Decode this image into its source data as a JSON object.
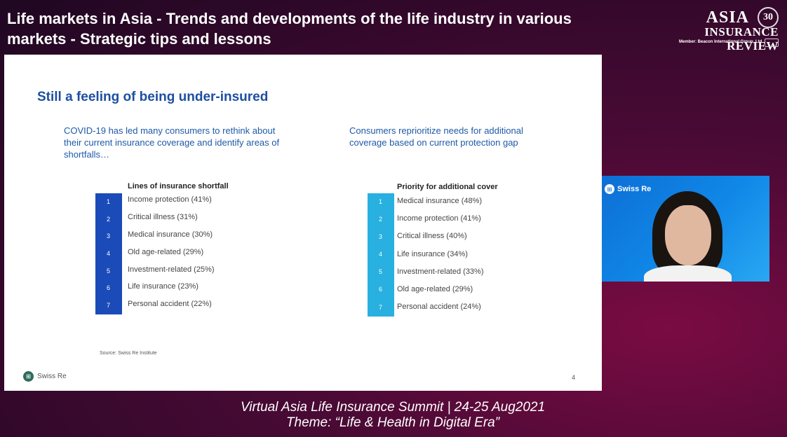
{
  "header": {
    "title": "Life markets in Asia - Trends and developments of the life industry in various markets - Strategic tips and lessons"
  },
  "logo": {
    "asia": "ASIA",
    "review": "INSURANCE REVIEW",
    "anniversary": "30",
    "member": "Member: Beacon International Group, Ltd."
  },
  "slide": {
    "title": "Still a feeling of being under-insured",
    "intro_left": "COVID-19 has led many consumers to rethink about their current insurance coverage and identify areas of shortfalls…",
    "intro_right": "Consumers reprioritize needs for additional coverage based on current protection gap",
    "left_list": {
      "heading": "Lines of insurance shortfall",
      "numbers": [
        "1",
        "2",
        "3",
        "4",
        "5",
        "6",
        "7"
      ],
      "items": [
        "Income protection (41%)",
        "Critical illness (31%)",
        "Medical insurance (30%)",
        "Old age-related (29%)",
        "Investment-related  (25%)",
        "Life insurance (23%)",
        "Personal accident (22%)"
      ]
    },
    "right_list": {
      "heading": "Priority for additional cover",
      "numbers": [
        "1",
        "2",
        "3",
        "4",
        "5",
        "6",
        "7"
      ],
      "items": [
        "Medical insurance (48%)",
        "Income protection (41%)",
        "Critical illness (40%)",
        "Life insurance (34%)",
        "Investment-related (33%)",
        "Old age-related (29%)",
        "Personal accident (24%)"
      ]
    },
    "source": "Source: Swiss Re Institute",
    "brand": "Swiss Re",
    "page_number": "4"
  },
  "webcam": {
    "brand": "Swiss Re"
  },
  "footer": {
    "line1": "Virtual Asia Life Insurance Summit |  24-25 Aug2021",
    "line2": "Theme: “Life & Health in Digital Era”"
  },
  "colors": {
    "left_bar": "#1b4bb8",
    "right_bar": "#27b0e0",
    "title_blue": "#1e4fa0"
  }
}
